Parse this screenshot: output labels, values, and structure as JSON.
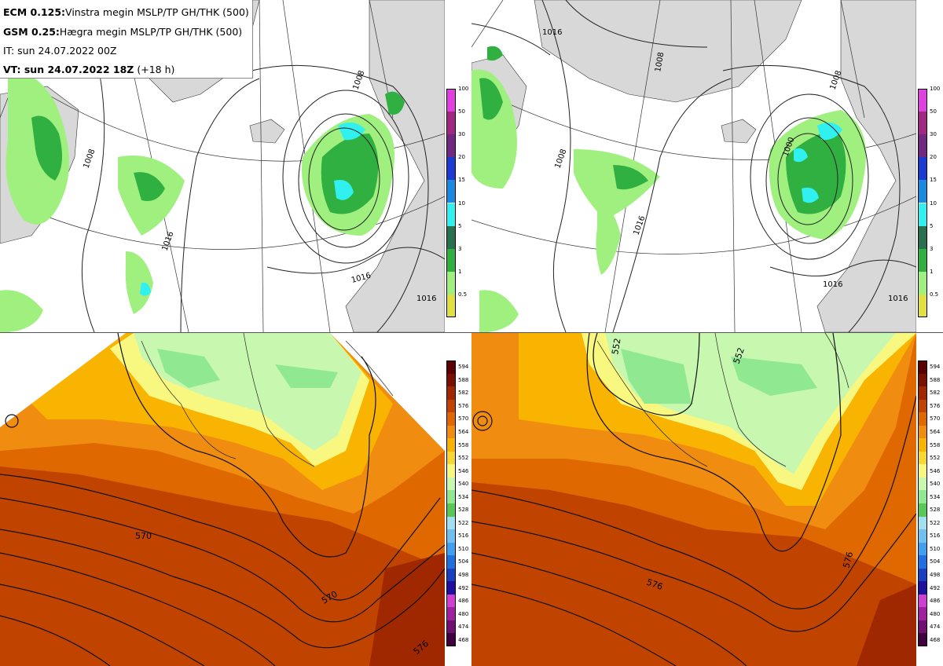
{
  "header": {
    "ecm_model": "ECM 0.125:",
    "ecm_desc": "Vinstra megin MSLP/TP GH/THK (500)",
    "gsm_model": "GSM 0.25:",
    "gsm_desc": "Hægra megin MSLP/TP GH/THK (500)",
    "it_line": "IT: sun 24.07.2022 00Z",
    "vt_label": "VT: sun 24.07.2022 18Z",
    "vt_offset": "(+18 h)"
  },
  "precip_legend": {
    "ticks": [
      "100",
      "50",
      "30",
      "20",
      "15",
      "10",
      "5",
      "3",
      "1",
      "0.5"
    ],
    "colors": [
      "#e040e0",
      "#a02880",
      "#702880",
      "#1a3ad0",
      "#1a8ae0",
      "#30f0f0",
      "#287050",
      "#30b040",
      "#a0f080",
      "#e0e040"
    ]
  },
  "thk_legend": {
    "ticks": [
      "594",
      "588",
      "582",
      "576",
      "570",
      "564",
      "558",
      "552",
      "546",
      "540",
      "534",
      "528",
      "522",
      "516",
      "510",
      "504",
      "498",
      "492",
      "486",
      "480",
      "474",
      "468"
    ],
    "colors": [
      "#5a0000",
      "#7a1000",
      "#a02800",
      "#c04400",
      "#e06800",
      "#f08c10",
      "#f8b400",
      "#f8d830",
      "#f8f880",
      "#c8f8b0",
      "#90e890",
      "#58c858",
      "#a0e0f0",
      "#70c0f0",
      "#40a0f0",
      "#2070e0",
      "#1840c0",
      "#2010a0",
      "#d040d0",
      "#a020a0",
      "#701070",
      "#400040"
    ]
  },
  "mslp_labels": {
    "tl": [
      "1008",
      "1016",
      "1016",
      "1016",
      "1008"
    ],
    "tr": [
      "1008",
      "1016",
      "1016",
      "1008",
      "1016",
      "1016",
      "1000",
      "1008"
    ]
  },
  "gh_labels": {
    "bl": [
      "570",
      "570",
      "576"
    ],
    "br": [
      "552",
      "552",
      "576",
      "576"
    ]
  },
  "colors": {
    "land": "#d8d8d8",
    "sea": "#ffffff",
    "contour": "#222222"
  }
}
